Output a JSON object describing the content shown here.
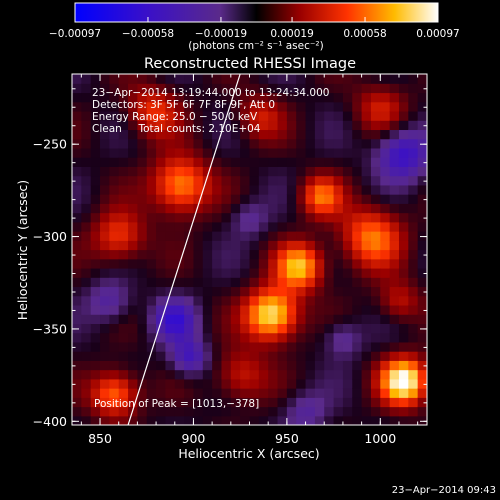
{
  "chart_data": {
    "type": "heatmap",
    "title": "Reconstructed RHESSI Image",
    "xlabel": "Heliocentric X (arcsec)",
    "ylabel": "Heliocentric Y (arcsec)",
    "xlim": [
      835,
      1025
    ],
    "ylim": [
      -402,
      -212
    ],
    "x_ticks": [
      {
        "value": 850,
        "label": "850"
      },
      {
        "value": 900,
        "label": "900"
      },
      {
        "value": 950,
        "label": "950"
      },
      {
        "value": 1000,
        "label": "1000"
      }
    ],
    "y_ticks": [
      {
        "value": -250,
        "label": "−250"
      },
      {
        "value": -300,
        "label": "−300"
      },
      {
        "value": -350,
        "label": "−350"
      },
      {
        "value": -400,
        "label": "−400"
      }
    ],
    "colorbar": {
      "range": [
        -0.00097,
        0.00097
      ],
      "tick_values": [
        -0.00097,
        -0.00058,
        -0.00019,
        0.00019,
        0.00058,
        0.00097
      ],
      "tick_labels": [
        "−0.00097",
        "−0.00058",
        "−0.00019",
        "0.00019",
        "0.00058",
        "0.00097"
      ],
      "unit_label": "(photons cm⁻² s⁻¹ asec⁻²)"
    },
    "annotations": [
      "23−Apr−2014 13:19:44.000 to 13:24:34.000",
      "Detectors: 3F 5F 6F 7F 8F 9F, Att 0",
      "Energy Range: 25.0 − 50.0 keV",
      "Clean     Total counts: 2.10E+04",
      "Position of Peak = [1013,−378]"
    ],
    "limb_line": [
      [
        865,
        -402
      ],
      [
        925,
        -212
      ]
    ],
    "grid_cell_arcsec": 5,
    "sources": [
      {
        "x": 1013,
        "y": -378,
        "sigma": 9,
        "amp": 1.0
      },
      {
        "x": 942,
        "y": -342,
        "sigma": 10,
        "amp": 0.95
      },
      {
        "x": 957,
        "y": -316,
        "sigma": 9,
        "amp": 0.75
      },
      {
        "x": 968,
        "y": -278,
        "sigma": 8,
        "amp": 0.55
      },
      {
        "x": 995,
        "y": -300,
        "sigma": 12,
        "amp": 0.6
      },
      {
        "x": 893,
        "y": -272,
        "sigma": 11,
        "amp": 0.72
      },
      {
        "x": 860,
        "y": -300,
        "sigma": 10,
        "amp": 0.5
      },
      {
        "x": 878,
        "y": -232,
        "sigma": 10,
        "amp": 0.45
      },
      {
        "x": 858,
        "y": -385,
        "sigma": 9,
        "amp": 0.65
      },
      {
        "x": 925,
        "y": -375,
        "sigma": 10,
        "amp": 0.4
      },
      {
        "x": 1000,
        "y": -230,
        "sigma": 10,
        "amp": 0.35
      },
      {
        "x": 1010,
        "y": -335,
        "sigma": 8,
        "amp": 0.35
      },
      {
        "x": 935,
        "y": -235,
        "sigma": 9,
        "amp": 0.35
      },
      {
        "x": 890,
        "y": -345,
        "sigma": 8,
        "amp": -0.55
      },
      {
        "x": 898,
        "y": -365,
        "sigma": 7,
        "amp": -0.5
      },
      {
        "x": 1012,
        "y": -255,
        "sigma": 10,
        "amp": -0.6
      },
      {
        "x": 855,
        "y": -335,
        "sigma": 8,
        "amp": -0.35
      },
      {
        "x": 930,
        "y": -290,
        "sigma": 7,
        "amp": -0.25
      },
      {
        "x": 980,
        "y": -355,
        "sigma": 7,
        "amp": -0.3
      },
      {
        "x": 960,
        "y": -395,
        "sigma": 8,
        "amp": -0.3
      }
    ]
  },
  "footer": {
    "timestamp": "23−Apr−2014 09:43"
  },
  "colors": {
    "negative_low": "#0000ff",
    "neutral": "#000000",
    "positive_mid": "#ff2200",
    "positive_high": "#ffffff"
  }
}
